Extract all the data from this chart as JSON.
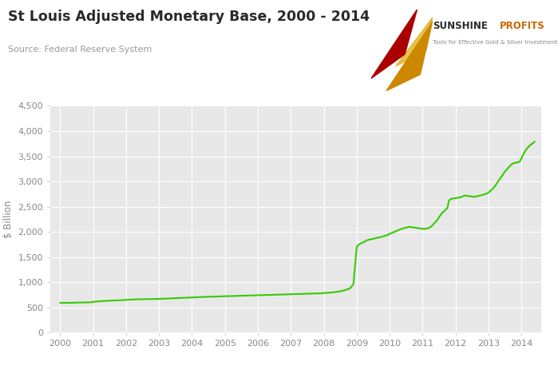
{
  "title": "St Louis Adjusted Monetary Base, 2000 - 2014",
  "source": "Source: Federal Reserve System",
  "ylabel": "$ Billion",
  "background_color": "#e8e8e8",
  "outer_background": "#ffffff",
  "line_color": "#33cc00",
  "line_width": 1.5,
  "ylim": [
    0,
    4500
  ],
  "yticks": [
    0,
    500,
    1000,
    1500,
    2000,
    2500,
    3000,
    3500,
    4000,
    4500
  ],
  "xlim_start": 1999.7,
  "xlim_end": 2014.6,
  "xtick_labels": [
    "2000",
    "2001",
    "2002",
    "2003",
    "2004",
    "2005",
    "2006",
    "2007",
    "2008",
    "2009",
    "2010",
    "2011",
    "2012",
    "2013",
    "2014"
  ],
  "data": {
    "years": [
      2000.0,
      2000.1,
      2000.2,
      2000.3,
      2000.4,
      2000.5,
      2000.6,
      2000.7,
      2000.8,
      2000.9,
      2001.0,
      2001.1,
      2001.2,
      2001.3,
      2001.4,
      2001.5,
      2001.6,
      2001.7,
      2001.8,
      2001.9,
      2002.0,
      2002.1,
      2002.2,
      2002.3,
      2002.4,
      2002.5,
      2002.6,
      2002.7,
      2002.8,
      2002.9,
      2003.0,
      2003.1,
      2003.2,
      2003.3,
      2003.4,
      2003.5,
      2003.6,
      2003.7,
      2003.8,
      2003.9,
      2004.0,
      2004.1,
      2004.2,
      2004.3,
      2004.4,
      2004.5,
      2004.6,
      2004.7,
      2004.8,
      2004.9,
      2005.0,
      2005.1,
      2005.2,
      2005.3,
      2005.4,
      2005.5,
      2005.6,
      2005.7,
      2005.8,
      2005.9,
      2006.0,
      2006.1,
      2006.2,
      2006.3,
      2006.4,
      2006.5,
      2006.6,
      2006.7,
      2006.8,
      2006.9,
      2007.0,
      2007.1,
      2007.2,
      2007.3,
      2007.4,
      2007.5,
      2007.6,
      2007.7,
      2007.8,
      2007.9,
      2008.0,
      2008.1,
      2008.2,
      2008.3,
      2008.4,
      2008.5,
      2008.6,
      2008.7,
      2008.8,
      2008.9,
      2009.0,
      2009.05,
      2009.1,
      2009.15,
      2009.2,
      2009.25,
      2009.3,
      2009.35,
      2009.4,
      2009.45,
      2009.5,
      2009.55,
      2009.6,
      2009.65,
      2009.7,
      2009.75,
      2009.8,
      2009.85,
      2009.9,
      2009.95,
      2010.0,
      2010.05,
      2010.1,
      2010.15,
      2010.2,
      2010.25,
      2010.3,
      2010.35,
      2010.4,
      2010.45,
      2010.5,
      2010.55,
      2010.6,
      2010.65,
      2010.7,
      2010.75,
      2010.8,
      2010.85,
      2010.9,
      2010.95,
      2011.0,
      2011.05,
      2011.1,
      2011.15,
      2011.2,
      2011.25,
      2011.3,
      2011.35,
      2011.4,
      2011.45,
      2011.5,
      2011.55,
      2011.6,
      2011.65,
      2011.7,
      2011.75,
      2011.8,
      2011.85,
      2011.9,
      2011.95,
      2012.0,
      2012.05,
      2012.1,
      2012.15,
      2012.2,
      2012.25,
      2012.3,
      2012.35,
      2012.4,
      2012.45,
      2012.5,
      2012.55,
      2012.6,
      2012.65,
      2012.7,
      2012.75,
      2012.8,
      2012.85,
      2012.9,
      2012.95,
      2013.0,
      2013.05,
      2013.1,
      2013.15,
      2013.2,
      2013.25,
      2013.3,
      2013.35,
      2013.4,
      2013.45,
      2013.5,
      2013.55,
      2013.6,
      2013.65,
      2013.7,
      2013.75,
      2013.8,
      2013.85,
      2013.9,
      2013.95,
      2014.0,
      2014.05,
      2014.1,
      2014.15,
      2014.2,
      2014.25,
      2014.3,
      2014.35,
      2014.4
    ],
    "values": [
      592,
      590,
      591,
      593,
      594,
      596,
      597,
      598,
      600,
      601,
      610,
      618,
      622,
      628,
      630,
      635,
      638,
      640,
      642,
      645,
      650,
      655,
      658,
      660,
      662,
      664,
      665,
      666,
      667,
      668,
      670,
      672,
      675,
      678,
      682,
      685,
      688,
      690,
      692,
      695,
      698,
      702,
      705,
      708,
      710,
      712,
      714,
      716,
      718,
      720,
      722,
      724,
      726,
      728,
      730,
      732,
      734,
      736,
      738,
      740,
      742,
      744,
      746,
      748,
      750,
      752,
      754,
      756,
      758,
      760,
      762,
      764,
      766,
      768,
      770,
      772,
      774,
      776,
      778,
      780,
      785,
      790,
      795,
      800,
      810,
      820,
      835,
      855,
      880,
      960,
      1700,
      1740,
      1760,
      1780,
      1790,
      1810,
      1830,
      1840,
      1850,
      1855,
      1860,
      1870,
      1880,
      1885,
      1890,
      1900,
      1910,
      1920,
      1930,
      1940,
      1960,
      1975,
      1988,
      2000,
      2015,
      2030,
      2045,
      2055,
      2065,
      2075,
      2085,
      2092,
      2098,
      2095,
      2090,
      2085,
      2080,
      2075,
      2070,
      2065,
      2060,
      2058,
      2062,
      2068,
      2080,
      2100,
      2130,
      2170,
      2200,
      2240,
      2290,
      2340,
      2380,
      2410,
      2440,
      2470,
      2620,
      2650,
      2660,
      2665,
      2670,
      2675,
      2680,
      2685,
      2700,
      2715,
      2720,
      2715,
      2710,
      2705,
      2700,
      2695,
      2700,
      2705,
      2715,
      2720,
      2730,
      2740,
      2750,
      2760,
      2780,
      2810,
      2840,
      2870,
      2910,
      2960,
      3010,
      3060,
      3100,
      3150,
      3200,
      3230,
      3270,
      3310,
      3340,
      3360,
      3370,
      3375,
      3380,
      3400,
      3460,
      3530,
      3590,
      3640,
      3680,
      3710,
      3740,
      3760,
      3790
    ]
  }
}
